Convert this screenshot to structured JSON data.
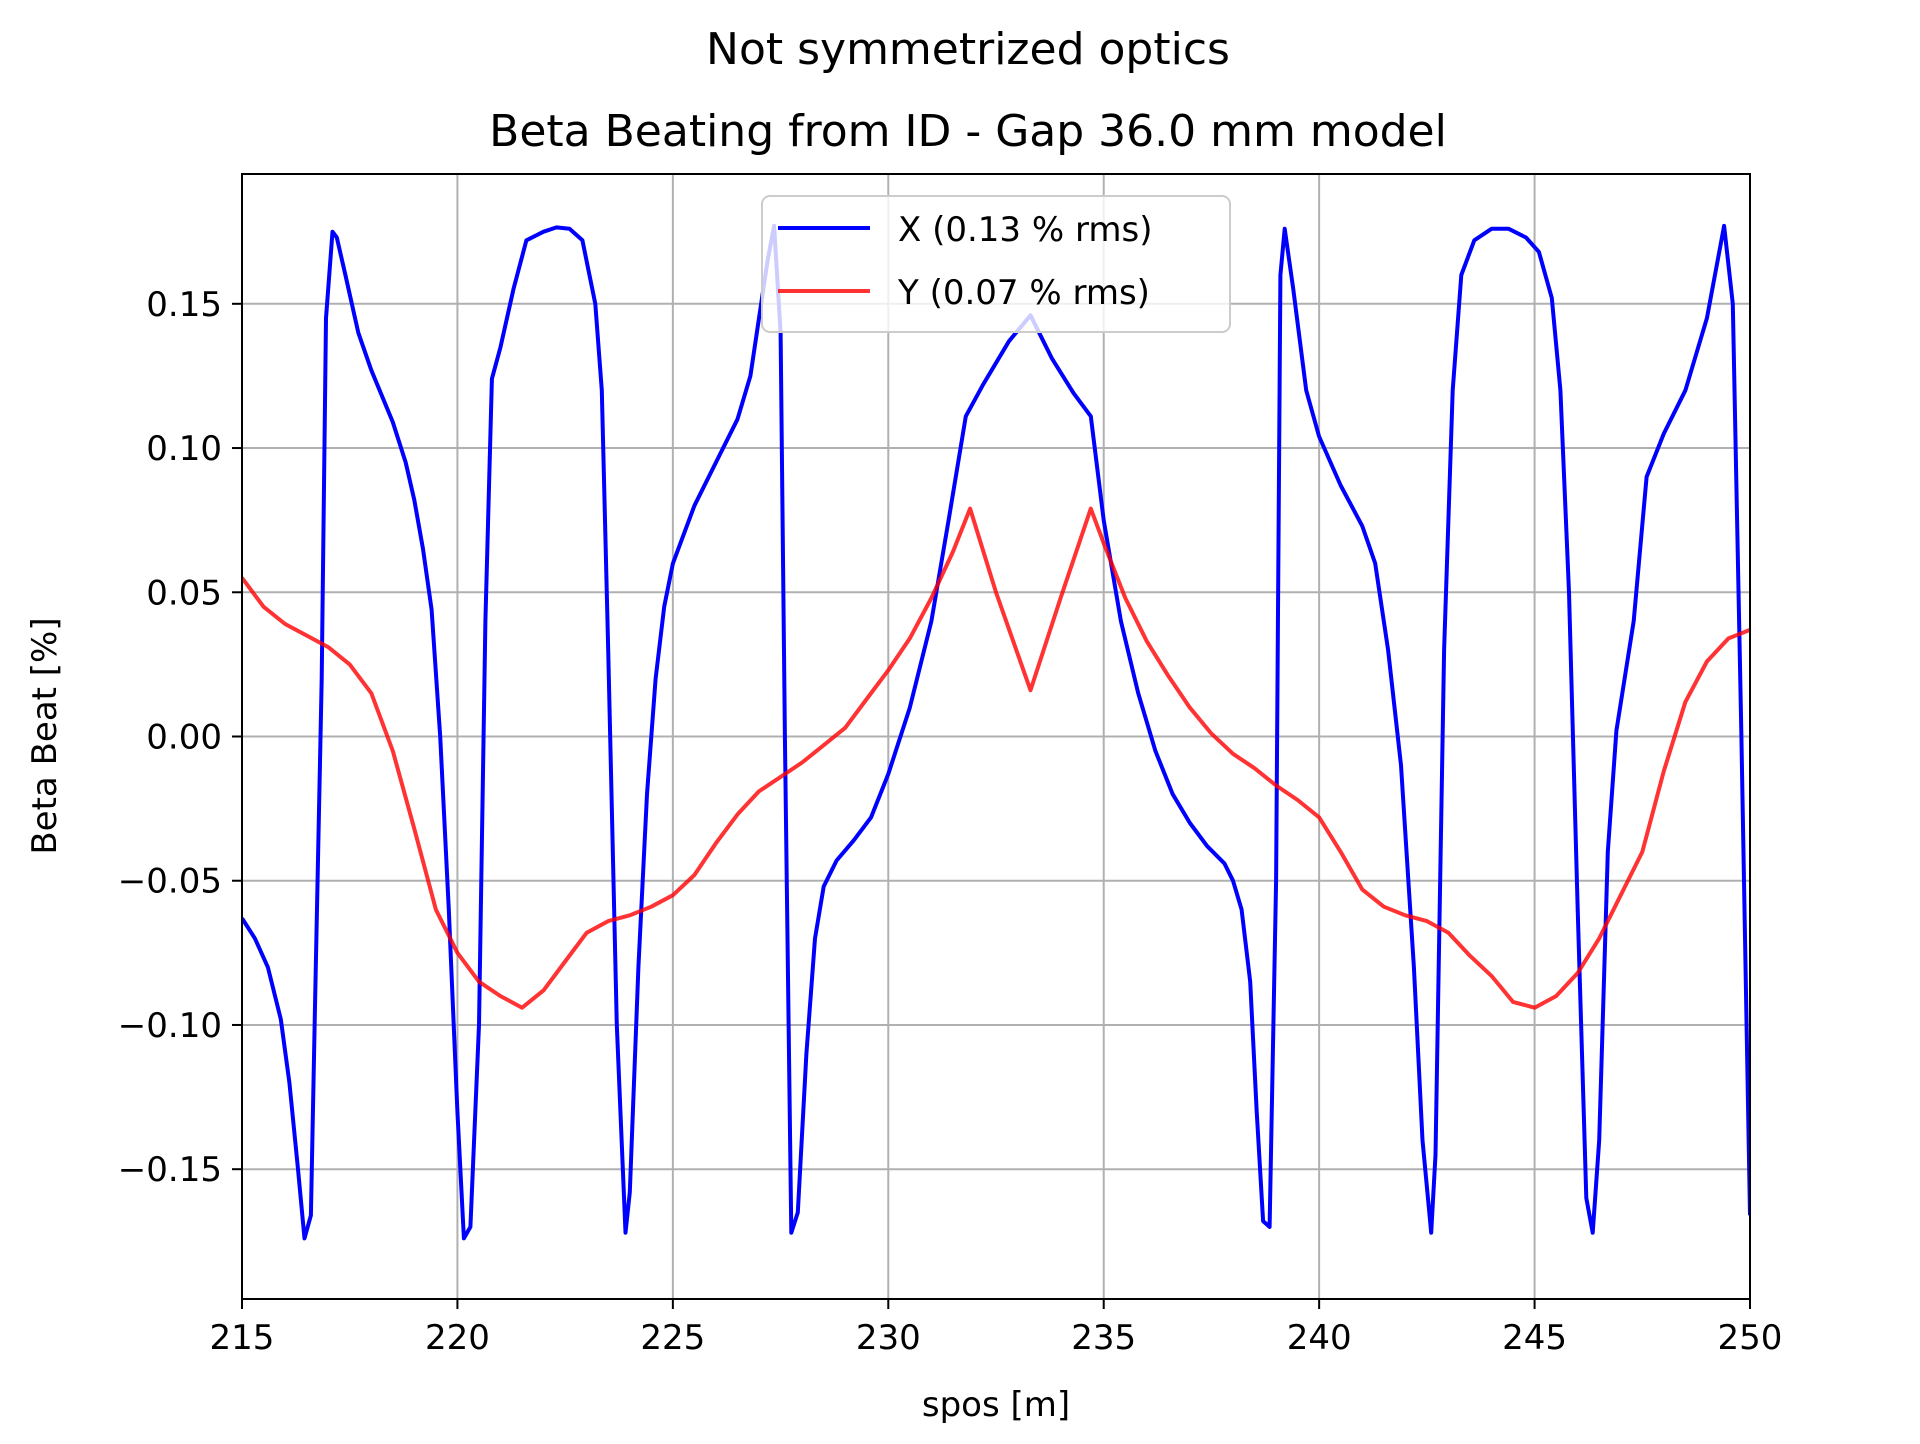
{
  "chart_data": {
    "type": "line",
    "title": "Not symmetrized optics",
    "subtitle": "Beta Beating from ID - Gap 36.0 mm model",
    "xlabel": "spos [m]",
    "ylabel": "Beta Beat [%]",
    "xlim": [
      215,
      250
    ],
    "ylim": [
      -0.195,
      0.195
    ],
    "x_ticks": [
      215,
      220,
      225,
      230,
      235,
      240,
      245,
      250
    ],
    "x_tick_labels": [
      "215",
      "220",
      "225",
      "230",
      "235",
      "240",
      "245",
      "250"
    ],
    "y_ticks": [
      -0.15,
      -0.1,
      -0.05,
      0.0,
      0.05,
      0.1,
      0.15
    ],
    "y_tick_labels": [
      "−0.15",
      "−0.10",
      "−0.05",
      "0.00",
      "0.05",
      "0.10",
      "0.15"
    ],
    "grid": true,
    "legend_position": "top-center",
    "series": [
      {
        "name": "X (0.13 % rms)",
        "color": "#0000ff",
        "points": [
          [
            215.0,
            -0.063
          ],
          [
            215.3,
            -0.07
          ],
          [
            215.6,
            -0.08
          ],
          [
            215.9,
            -0.098
          ],
          [
            216.1,
            -0.12
          ],
          [
            216.3,
            -0.15
          ],
          [
            216.45,
            -0.174
          ],
          [
            216.6,
            -0.166
          ],
          [
            216.7,
            -0.09
          ],
          [
            216.85,
            0.02
          ],
          [
            216.95,
            0.145
          ],
          [
            217.1,
            0.175
          ],
          [
            217.2,
            0.173
          ],
          [
            217.4,
            0.16
          ],
          [
            217.7,
            0.14
          ],
          [
            218.0,
            0.127
          ],
          [
            218.5,
            0.109
          ],
          [
            218.8,
            0.095
          ],
          [
            219.0,
            0.082
          ],
          [
            219.2,
            0.065
          ],
          [
            219.4,
            0.044
          ],
          [
            219.6,
            0.0
          ],
          [
            219.8,
            -0.06
          ],
          [
            220.0,
            -0.13
          ],
          [
            220.15,
            -0.174
          ],
          [
            220.3,
            -0.17
          ],
          [
            220.5,
            -0.1
          ],
          [
            220.65,
            0.04
          ],
          [
            220.8,
            0.124
          ],
          [
            221.0,
            0.135
          ],
          [
            221.3,
            0.155
          ],
          [
            221.6,
            0.172
          ],
          [
            222.0,
            0.175
          ],
          [
            222.3,
            0.1765
          ],
          [
            222.6,
            0.176
          ],
          [
            222.9,
            0.172
          ],
          [
            223.2,
            0.15
          ],
          [
            223.35,
            0.12
          ],
          [
            223.5,
            0.03
          ],
          [
            223.7,
            -0.1
          ],
          [
            223.9,
            -0.172
          ],
          [
            224.0,
            -0.158
          ],
          [
            224.2,
            -0.08
          ],
          [
            224.4,
            -0.02
          ],
          [
            224.6,
            0.02
          ],
          [
            224.8,
            0.045
          ],
          [
            225.0,
            0.06
          ],
          [
            225.5,
            0.08
          ],
          [
            226.0,
            0.095
          ],
          [
            226.5,
            0.11
          ],
          [
            226.8,
            0.125
          ],
          [
            227.0,
            0.145
          ],
          [
            227.2,
            0.165
          ],
          [
            227.35,
            0.177
          ],
          [
            227.5,
            0.14
          ],
          [
            227.6,
            0.0
          ],
          [
            227.75,
            -0.172
          ],
          [
            227.9,
            -0.165
          ],
          [
            228.1,
            -0.11
          ],
          [
            228.3,
            -0.07
          ],
          [
            228.5,
            -0.052
          ],
          [
            228.8,
            -0.043
          ],
          [
            229.2,
            -0.036
          ],
          [
            229.6,
            -0.028
          ],
          [
            230.0,
            -0.013
          ],
          [
            230.5,
            0.01
          ],
          [
            231.0,
            0.04
          ],
          [
            231.4,
            0.075
          ],
          [
            231.8,
            0.111
          ],
          [
            232.2,
            0.122
          ],
          [
            232.8,
            0.137
          ],
          [
            233.3,
            0.146
          ],
          [
            233.8,
            0.131
          ],
          [
            234.3,
            0.119
          ],
          [
            234.7,
            0.111
          ],
          [
            235.0,
            0.075
          ],
          [
            235.4,
            0.04
          ],
          [
            235.8,
            0.015
          ],
          [
            236.2,
            -0.005
          ],
          [
            236.6,
            -0.02
          ],
          [
            237.0,
            -0.03
          ],
          [
            237.4,
            -0.038
          ],
          [
            237.8,
            -0.044
          ],
          [
            238.0,
            -0.05
          ],
          [
            238.2,
            -0.06
          ],
          [
            238.4,
            -0.085
          ],
          [
            238.55,
            -0.13
          ],
          [
            238.7,
            -0.168
          ],
          [
            238.85,
            -0.17
          ],
          [
            239.0,
            -0.05
          ],
          [
            239.1,
            0.16
          ],
          [
            239.2,
            0.176
          ],
          [
            239.4,
            0.155
          ],
          [
            239.7,
            0.12
          ],
          [
            240.0,
            0.104
          ],
          [
            240.5,
            0.087
          ],
          [
            241.0,
            0.073
          ],
          [
            241.3,
            0.06
          ],
          [
            241.6,
            0.03
          ],
          [
            241.9,
            -0.01
          ],
          [
            242.2,
            -0.08
          ],
          [
            242.4,
            -0.14
          ],
          [
            242.6,
            -0.172
          ],
          [
            242.7,
            -0.145
          ],
          [
            242.9,
            0.03
          ],
          [
            243.1,
            0.12
          ],
          [
            243.3,
            0.16
          ],
          [
            243.6,
            0.172
          ],
          [
            244.0,
            0.176
          ],
          [
            244.4,
            0.176
          ],
          [
            244.8,
            0.173
          ],
          [
            245.1,
            0.168
          ],
          [
            245.4,
            0.152
          ],
          [
            245.6,
            0.12
          ],
          [
            245.8,
            0.05
          ],
          [
            246.0,
            -0.06
          ],
          [
            246.2,
            -0.16
          ],
          [
            246.35,
            -0.172
          ],
          [
            246.5,
            -0.14
          ],
          [
            246.7,
            -0.04
          ],
          [
            246.9,
            0.002
          ],
          [
            247.3,
            0.04
          ],
          [
            247.6,
            0.09
          ],
          [
            248.0,
            0.105
          ],
          [
            248.5,
            0.12
          ],
          [
            249.0,
            0.145
          ],
          [
            249.4,
            0.177
          ],
          [
            249.6,
            0.15
          ],
          [
            249.8,
            0.0
          ],
          [
            250.0,
            -0.166
          ]
        ]
      },
      {
        "name": "Y (0.07 % rms)",
        "color": "#ff0000",
        "points": [
          [
            215.0,
            0.055
          ],
          [
            215.5,
            0.045
          ],
          [
            216.0,
            0.039
          ],
          [
            216.5,
            0.035
          ],
          [
            217.0,
            0.031
          ],
          [
            217.5,
            0.025
          ],
          [
            218.0,
            0.015
          ],
          [
            218.5,
            -0.005
          ],
          [
            219.0,
            -0.032
          ],
          [
            219.5,
            -0.06
          ],
          [
            220.0,
            -0.075
          ],
          [
            220.5,
            -0.085
          ],
          [
            221.0,
            -0.09
          ],
          [
            221.5,
            -0.094
          ],
          [
            222.0,
            -0.088
          ],
          [
            222.5,
            -0.078
          ],
          [
            223.0,
            -0.068
          ],
          [
            223.5,
            -0.064
          ],
          [
            224.0,
            -0.062
          ],
          [
            224.5,
            -0.059
          ],
          [
            225.0,
            -0.055
          ],
          [
            225.5,
            -0.048
          ],
          [
            226.0,
            -0.037
          ],
          [
            226.5,
            -0.027
          ],
          [
            227.0,
            -0.019
          ],
          [
            227.5,
            -0.014
          ],
          [
            228.0,
            -0.009
          ],
          [
            228.5,
            -0.003
          ],
          [
            229.0,
            0.003
          ],
          [
            229.5,
            0.013
          ],
          [
            230.0,
            0.023
          ],
          [
            230.5,
            0.034
          ],
          [
            231.0,
            0.048
          ],
          [
            231.5,
            0.064
          ],
          [
            231.9,
            0.079
          ],
          [
            232.5,
            0.05
          ],
          [
            233.3,
            0.016
          ],
          [
            234.0,
            0.048
          ],
          [
            234.7,
            0.079
          ],
          [
            235.0,
            0.067
          ],
          [
            235.5,
            0.048
          ],
          [
            236.0,
            0.033
          ],
          [
            236.5,
            0.021
          ],
          [
            237.0,
            0.01
          ],
          [
            237.5,
            0.001
          ],
          [
            238.0,
            -0.006
          ],
          [
            238.5,
            -0.011
          ],
          [
            239.0,
            -0.017
          ],
          [
            239.5,
            -0.022
          ],
          [
            240.0,
            -0.028
          ],
          [
            240.5,
            -0.04
          ],
          [
            241.0,
            -0.053
          ],
          [
            241.5,
            -0.059
          ],
          [
            242.0,
            -0.062
          ],
          [
            242.5,
            -0.064
          ],
          [
            243.0,
            -0.068
          ],
          [
            243.5,
            -0.076
          ],
          [
            244.0,
            -0.083
          ],
          [
            244.5,
            -0.092
          ],
          [
            245.0,
            -0.094
          ],
          [
            245.5,
            -0.09
          ],
          [
            246.0,
            -0.082
          ],
          [
            246.5,
            -0.07
          ],
          [
            247.0,
            -0.055
          ],
          [
            247.5,
            -0.04
          ],
          [
            248.0,
            -0.012
          ],
          [
            248.5,
            0.012
          ],
          [
            249.0,
            0.026
          ],
          [
            249.5,
            0.034
          ],
          [
            250.0,
            0.037
          ]
        ]
      }
    ]
  }
}
